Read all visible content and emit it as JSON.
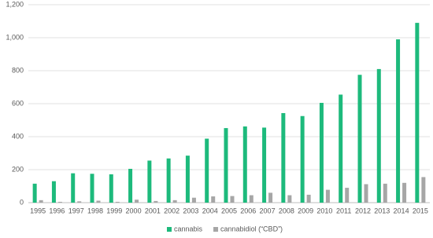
{
  "chart_data": {
    "type": "bar",
    "categories": [
      "1995",
      "1996",
      "1997",
      "1998",
      "1999",
      "2000",
      "2001",
      "2002",
      "2003",
      "2004",
      "2005",
      "2006",
      "2007",
      "2008",
      "2009",
      "2010",
      "2011",
      "2012",
      "2013",
      "2014",
      "2015"
    ],
    "series": [
      {
        "name": "cannabis",
        "color": "#1dba7c",
        "values": [
          115,
          130,
          178,
          175,
          172,
          205,
          255,
          268,
          285,
          388,
          452,
          462,
          455,
          543,
          525,
          605,
          655,
          775,
          810,
          990,
          1090
        ]
      },
      {
        "name": "cannabidiol (“CBD”)",
        "color": "#a6a6a6",
        "values": [
          15,
          5,
          8,
          12,
          5,
          18,
          10,
          15,
          30,
          38,
          40,
          45,
          60,
          45,
          48,
          78,
          90,
          112,
          115,
          120,
          155
        ]
      }
    ],
    "ylim": [
      0,
      1200
    ],
    "yticks": [
      0,
      200,
      400,
      600,
      800,
      {
        "value": 1000,
        "label": "1,000"
      },
      {
        "value": 1200,
        "label": "1,200"
      }
    ],
    "grid": true,
    "legend": "bottom"
  }
}
